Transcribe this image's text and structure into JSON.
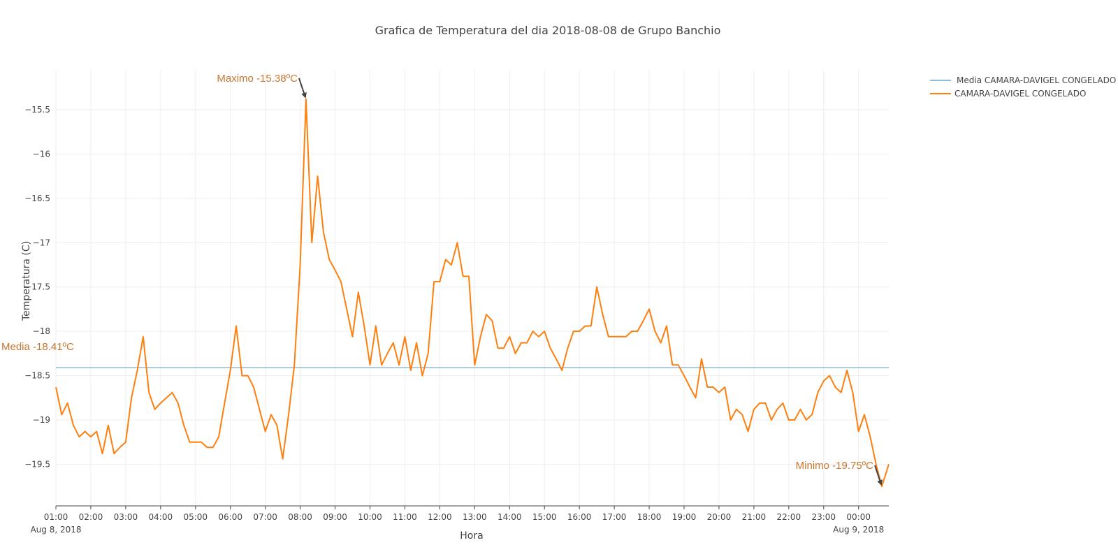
{
  "chart_data": {
    "type": "line",
    "title": "Grafica de Temperatura del dia 2018-08-08 de Grupo Banchio",
    "xlabel": "Hora",
    "ylabel": "Temperatura (C)",
    "ylim": [
      -19.97,
      -15.05
    ],
    "xlim": [
      "2018-08-08 01:00",
      "2018-08-09 00:52"
    ],
    "grid": true,
    "legend_position": "top-right",
    "x_tick_labels": [
      "01:00",
      "02:00",
      "03:00",
      "04:00",
      "05:00",
      "06:00",
      "07:00",
      "08:00",
      "09:00",
      "10:00",
      "11:00",
      "12:00",
      "13:00",
      "14:00",
      "15:00",
      "16:00",
      "17:00",
      "18:00",
      "19:00",
      "20:00",
      "21:00",
      "22:00",
      "23:00",
      "00:00"
    ],
    "x_date_labels": [
      {
        "text": "Aug 8, 2018",
        "at": "2018-08-08 01:00"
      },
      {
        "text": "Aug 9, 2018",
        "at": "2018-08-09 00:00"
      }
    ],
    "y_tick_values": [
      -15.5,
      -16,
      -16.5,
      -17,
      -17.5,
      -18,
      -18.5,
      -19,
      -19.5
    ],
    "y_tick_labels": [
      "−15.5",
      "−16",
      "−16.5",
      "−17",
      "−17.5",
      "−18",
      "−18.5",
      "−19",
      "−19.5"
    ],
    "series": [
      {
        "name": "Media CAMARA-DAVIGEL CONGELADO",
        "color": "#1f77b4",
        "x": [
          "2018-08-08 01:00",
          "2018-08-09 00:52"
        ],
        "y": [
          -18.41,
          -18.41
        ]
      },
      {
        "name": "CAMARA-DAVIGEL CONGELADO",
        "color": "#ff7f0e",
        "x": [
          "2018-08-08 01:00",
          "2018-08-08 01:10",
          "2018-08-08 01:20",
          "2018-08-08 01:30",
          "2018-08-08 01:40",
          "2018-08-08 01:50",
          "2018-08-08 02:00",
          "2018-08-08 02:10",
          "2018-08-08 02:20",
          "2018-08-08 02:30",
          "2018-08-08 02:40",
          "2018-08-08 02:50",
          "2018-08-08 03:00",
          "2018-08-08 03:10",
          "2018-08-08 03:20",
          "2018-08-08 03:30",
          "2018-08-08 03:40",
          "2018-08-08 03:50",
          "2018-08-08 04:00",
          "2018-08-08 04:10",
          "2018-08-08 04:20",
          "2018-08-08 04:30",
          "2018-08-08 04:40",
          "2018-08-08 04:50",
          "2018-08-08 05:00",
          "2018-08-08 05:10",
          "2018-08-08 05:20",
          "2018-08-08 05:30",
          "2018-08-08 05:40",
          "2018-08-08 05:50",
          "2018-08-08 06:00",
          "2018-08-08 06:10",
          "2018-08-08 06:20",
          "2018-08-08 06:30",
          "2018-08-08 06:40",
          "2018-08-08 06:50",
          "2018-08-08 07:00",
          "2018-08-08 07:10",
          "2018-08-08 07:20",
          "2018-08-08 07:30",
          "2018-08-08 07:40",
          "2018-08-08 07:50",
          "2018-08-08 08:00",
          "2018-08-08 08:10",
          "2018-08-08 08:20",
          "2018-08-08 08:30",
          "2018-08-08 08:40",
          "2018-08-08 08:50",
          "2018-08-08 09:00",
          "2018-08-08 09:10",
          "2018-08-08 09:20",
          "2018-08-08 09:30",
          "2018-08-08 09:40",
          "2018-08-08 09:50",
          "2018-08-08 10:00",
          "2018-08-08 10:10",
          "2018-08-08 10:20",
          "2018-08-08 10:30",
          "2018-08-08 10:40",
          "2018-08-08 10:50",
          "2018-08-08 11:00",
          "2018-08-08 11:10",
          "2018-08-08 11:20",
          "2018-08-08 11:30",
          "2018-08-08 11:40",
          "2018-08-08 11:50",
          "2018-08-08 12:00",
          "2018-08-08 12:10",
          "2018-08-08 12:20",
          "2018-08-08 12:30",
          "2018-08-08 12:40",
          "2018-08-08 12:50",
          "2018-08-08 13:00",
          "2018-08-08 13:10",
          "2018-08-08 13:20",
          "2018-08-08 13:30",
          "2018-08-08 13:40",
          "2018-08-08 13:50",
          "2018-08-08 14:00",
          "2018-08-08 14:10",
          "2018-08-08 14:20",
          "2018-08-08 14:30",
          "2018-08-08 14:40",
          "2018-08-08 14:50",
          "2018-08-08 15:00",
          "2018-08-08 15:10",
          "2018-08-08 15:20",
          "2018-08-08 15:30",
          "2018-08-08 15:40",
          "2018-08-08 15:50",
          "2018-08-08 16:00",
          "2018-08-08 16:10",
          "2018-08-08 16:20",
          "2018-08-08 16:30",
          "2018-08-08 16:40",
          "2018-08-08 16:50",
          "2018-08-08 17:00",
          "2018-08-08 17:10",
          "2018-08-08 17:20",
          "2018-08-08 17:30",
          "2018-08-08 17:40",
          "2018-08-08 17:50",
          "2018-08-08 18:00",
          "2018-08-08 18:10",
          "2018-08-08 18:20",
          "2018-08-08 18:30",
          "2018-08-08 18:40",
          "2018-08-08 18:50",
          "2018-08-08 19:00",
          "2018-08-08 19:10",
          "2018-08-08 19:20",
          "2018-08-08 19:30",
          "2018-08-08 19:40",
          "2018-08-08 19:50",
          "2018-08-08 20:00",
          "2018-08-08 20:10",
          "2018-08-08 20:20",
          "2018-08-08 20:30",
          "2018-08-08 20:40",
          "2018-08-08 20:50",
          "2018-08-08 21:00",
          "2018-08-08 21:10",
          "2018-08-08 21:20",
          "2018-08-08 21:30",
          "2018-08-08 21:40",
          "2018-08-08 21:50",
          "2018-08-08 22:00",
          "2018-08-08 22:10",
          "2018-08-08 22:20",
          "2018-08-08 22:30",
          "2018-08-08 22:40",
          "2018-08-08 22:50",
          "2018-08-08 23:00",
          "2018-08-08 23:10",
          "2018-08-08 23:20",
          "2018-08-08 23:30",
          "2018-08-08 23:40",
          "2018-08-08 23:50",
          "2018-08-09 00:00",
          "2018-08-09 00:10",
          "2018-08-09 00:20",
          "2018-08-09 00:30",
          "2018-08-09 00:40",
          "2018-08-09 00:52"
        ],
        "y": [
          -18.63,
          -18.94,
          -18.81,
          -19.06,
          -19.19,
          -19.13,
          -19.19,
          -19.13,
          -19.38,
          -19.06,
          -19.38,
          -19.31,
          -19.25,
          -18.75,
          -18.44,
          -18.06,
          -18.69,
          -18.88,
          -18.81,
          -18.75,
          -18.69,
          -18.81,
          -19.06,
          -19.25,
          -19.25,
          -19.25,
          -19.31,
          -19.31,
          -19.19,
          -18.81,
          -18.44,
          -17.94,
          -18.5,
          -18.5,
          -18.63,
          -18.88,
          -19.13,
          -18.94,
          -19.06,
          -19.44,
          -18.94,
          -18.38,
          -17.25,
          -15.38,
          -17.0,
          -16.25,
          -16.88,
          -17.19,
          -17.31,
          -17.44,
          -17.75,
          -18.06,
          -17.56,
          -17.94,
          -18.38,
          -17.94,
          -18.38,
          -18.25,
          -18.13,
          -18.38,
          -18.06,
          -18.44,
          -18.13,
          -18.5,
          -18.25,
          -17.44,
          -17.44,
          -17.19,
          -17.25,
          -17.0,
          -17.38,
          -17.38,
          -18.38,
          -18.06,
          -17.81,
          -17.88,
          -18.19,
          -18.19,
          -18.06,
          -18.25,
          -18.13,
          -18.13,
          -18.0,
          -18.06,
          -18.0,
          -18.19,
          -18.31,
          -18.44,
          -18.19,
          -18.0,
          -18.0,
          -17.94,
          -17.94,
          -17.5,
          -17.81,
          -18.06,
          -18.06,
          -18.06,
          -18.06,
          -18.0,
          -18.0,
          -17.88,
          -17.75,
          -18.0,
          -18.13,
          -17.94,
          -18.38,
          -18.38,
          -18.5,
          -18.63,
          -18.75,
          -18.31,
          -18.63,
          -18.63,
          -18.69,
          -18.63,
          -19.0,
          -18.88,
          -18.94,
          -19.13,
          -18.88,
          -18.81,
          -18.81,
          -19.0,
          -18.88,
          -18.81,
          -19.0,
          -19.0,
          -18.88,
          -19.0,
          -18.94,
          -18.69,
          -18.56,
          -18.5,
          -18.63,
          -18.69,
          -18.44,
          -18.69,
          -19.13,
          -18.94,
          -19.19,
          -19.5,
          -19.75,
          -19.5
        ]
      }
    ],
    "annotations": [
      {
        "text": "Maximo -15.38ºC",
        "x": "2018-08-08 08:10",
        "y": -15.38
      },
      {
        "text": "Minimo -19.75ºC",
        "x": "2018-08-09 00:40",
        "y": -19.75
      },
      {
        "text": "Media -18.41ºC",
        "x": "2018-08-08 01:00",
        "y": -18.41
      }
    ],
    "annotation_color": "#c9772f"
  }
}
